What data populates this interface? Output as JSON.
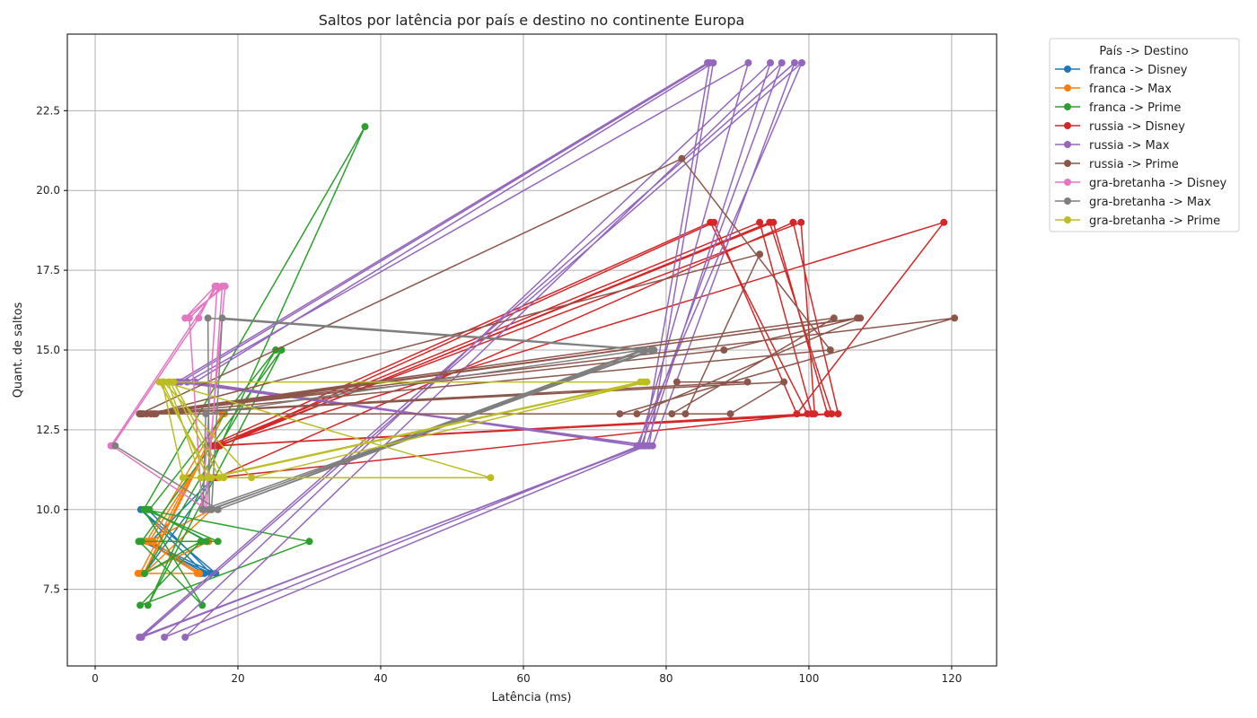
{
  "chart_data": {
    "type": "line",
    "title": "Saltos por latência por país e destino no continente Europa",
    "xlabel": "Latência (ms)",
    "ylabel": "Quant. de saltos",
    "xlim": [
      -3.9,
      126.3
    ],
    "ylim": [
      5.1,
      24.9
    ],
    "xticks": [
      0,
      20,
      40,
      60,
      80,
      100,
      120
    ],
    "yticks": [
      7.5,
      10.0,
      12.5,
      15.0,
      17.5,
      20.0,
      22.5
    ],
    "grid": true,
    "legend": {
      "title": "País -> Destino",
      "placement": "outside-top-right"
    },
    "series": [
      {
        "name": "franca -> Disney",
        "color": "#1f77b4",
        "x": [
          6.5,
          16.2,
          7.4,
          15.8,
          6.9,
          16.6,
          7.8,
          15.3,
          6.4,
          16.9,
          7.2,
          14.8
        ],
        "y": [
          9,
          8,
          10,
          9,
          8,
          11,
          9,
          8,
          10,
          8,
          9,
          8
        ]
      },
      {
        "name": "franca -> Max",
        "color": "#ff7f0e",
        "x": [
          6.0,
          14.3,
          7.2,
          17.8,
          6.8,
          15.9,
          8.1,
          14.6,
          6.3,
          13.2,
          7.6,
          16.3,
          6.9,
          18.1
        ],
        "y": [
          8,
          8,
          9,
          13,
          8,
          9,
          9,
          8,
          8,
          11,
          9,
          10,
          8,
          13
        ]
      },
      {
        "name": "franca -> Prime",
        "color": "#2ca02c",
        "x": [
          6.2,
          15.0,
          6.8,
          37.8,
          7.4,
          26.1,
          6.5,
          17.2,
          7.0,
          30.0,
          6.3,
          14.8,
          6.9,
          25.3,
          7.6,
          15.6,
          6.1
        ],
        "y": [
          9,
          7,
          10,
          22,
          7,
          15,
          9,
          9,
          10,
          9,
          7,
          9,
          8,
          15,
          10,
          9,
          9
        ]
      },
      {
        "name": "russia -> Disney",
        "color": "#d62728",
        "x": [
          16.0,
          86.2,
          99.8,
          17.3,
          95.0,
          102.6,
          16.6,
          93.1,
          100.4,
          17.0,
          97.8,
          104.1,
          16.8,
          118.9,
          98.3,
          86.7,
          17.5,
          94.5,
          103.2,
          16.4,
          98.9,
          100.8
        ],
        "y": [
          12,
          19,
          13,
          12,
          19,
          13,
          12,
          19,
          13,
          11,
          19,
          13,
          12,
          19,
          13,
          19,
          12,
          19,
          13,
          12,
          19,
          13
        ]
      },
      {
        "name": "russia -> Max",
        "color": "#9467bd",
        "x": [
          12.0,
          86.1,
          76.8,
          6.2,
          98.0,
          78.1,
          12.9,
          91.5,
          76.2,
          9.7,
          94.6,
          77.2,
          12.6,
          96.2,
          76.5,
          6.5,
          99.0,
          75.9,
          14.0,
          86.6,
          77.6,
          11.5,
          85.8
        ],
        "y": [
          14,
          24,
          12,
          6,
          24,
          12,
          14,
          24,
          12,
          6,
          24,
          12,
          6,
          24,
          12,
          6,
          24,
          12,
          14,
          24,
          12,
          14,
          24
        ]
      },
      {
        "name": "russia -> Prime",
        "color": "#8c564b",
        "x": [
          6.3,
          82.2,
          103.0,
          8.2,
          106.8,
          88.1,
          6.5,
          120.4,
          73.5,
          7.8,
          93.1,
          82.7,
          6.2,
          103.5,
          80.8,
          8.5,
          96.5,
          89.0,
          6.7,
          107.2,
          75.9,
          7.2,
          91.4,
          81.5
        ],
        "y": [
          13,
          21,
          15,
          13,
          16,
          15,
          13,
          16,
          13,
          13,
          18,
          13,
          13,
          16,
          13,
          13,
          14,
          13,
          13,
          16,
          13,
          13,
          14,
          14
        ]
      },
      {
        "name": "gra-bretanha -> Disney",
        "color": "#e377c2",
        "x": [
          2.2,
          17.1,
          15.0,
          13.2,
          17.8,
          15.6,
          2.4,
          14.5,
          16.8,
          12.6,
          18.2,
          15.3
        ],
        "y": [
          12,
          17,
          10,
          16,
          17,
          10,
          12,
          16,
          17,
          16,
          17,
          10
        ]
      },
      {
        "name": "gra-bretanha -> Max",
        "color": "#7f7f7f",
        "x": [
          2.8,
          17.2,
          77.0,
          15.8,
          16.0,
          78.3,
          17.8,
          16.3,
          76.6,
          15.5,
          15.1,
          77.9,
          17.2
        ],
        "y": [
          12,
          10,
          15,
          16,
          10,
          15,
          16,
          10,
          15,
          13,
          10,
          15,
          10
        ]
      },
      {
        "name": "gra-bretanha -> Prime",
        "color": "#bcbd22",
        "x": [
          9.0,
          16.3,
          76.9,
          10.2,
          14.8,
          55.4,
          9.6,
          21.9,
          77.3,
          10.5,
          17.4,
          12.3,
          9.4,
          15.8,
          76.4,
          11.0,
          18.0
        ],
        "y": [
          14,
          11,
          14,
          14,
          11,
          11,
          14,
          11,
          14,
          14,
          11,
          11,
          14,
          11,
          14,
          14,
          11
        ]
      }
    ]
  }
}
